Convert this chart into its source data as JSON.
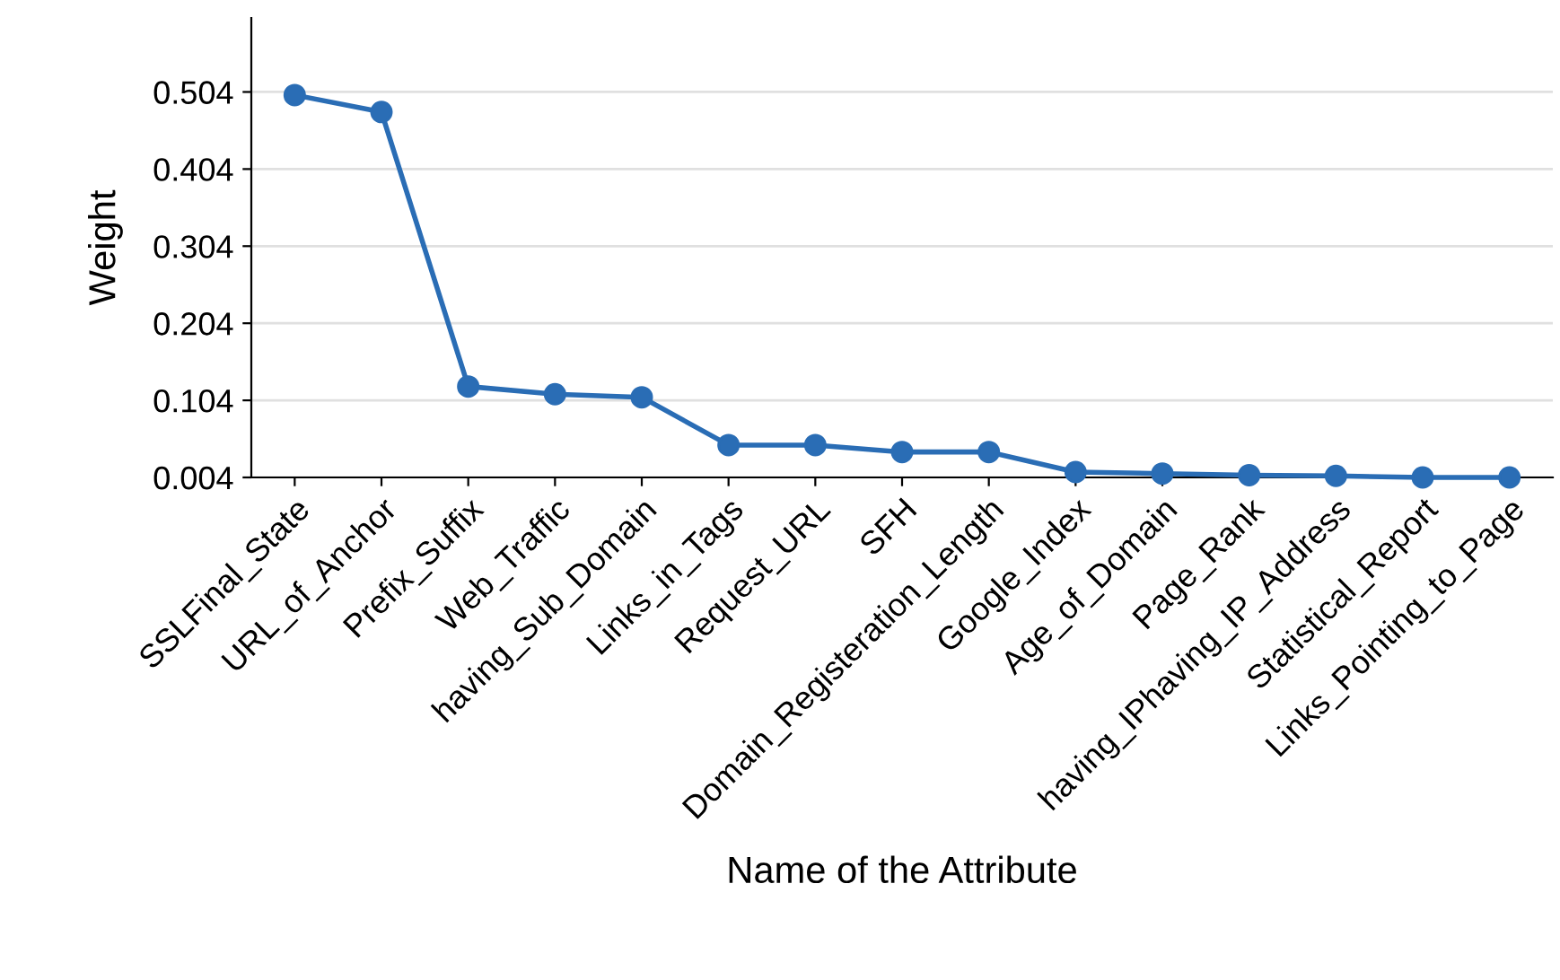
{
  "chart_data": {
    "type": "line",
    "xlabel": "Name of the Attribute",
    "ylabel": "Weight",
    "categories": [
      "SSLFinal_State",
      "URL_of_Anchor",
      "Prefix_Suffix",
      "Web_Traffic",
      "having_Sub_Domain",
      "Links_in_Tags",
      "Request_URL",
      "SFH",
      "Domain_Registeration_Length",
      "Google_Index",
      "Age_of_Domain",
      "Page_Rank",
      "having_IPhaving_IP_Address",
      "Statistical_Report",
      "Links_Pointing_to_Page"
    ],
    "series": [
      {
        "color": "#2a6db5",
        "values": [
          0.5,
          0.478,
          0.122,
          0.112,
          0.108,
          0.046,
          0.046,
          0.037,
          0.037,
          0.011,
          0.009,
          0.007,
          0.006,
          0.004,
          0.004
        ]
      }
    ],
    "ylim": [
      0.004,
      0.6
    ],
    "yticks": [
      0.004,
      0.104,
      0.204,
      0.304,
      0.404,
      0.504
    ],
    "grid": "y",
    "marker": "circle",
    "line_style": "solid",
    "legend": false
  }
}
